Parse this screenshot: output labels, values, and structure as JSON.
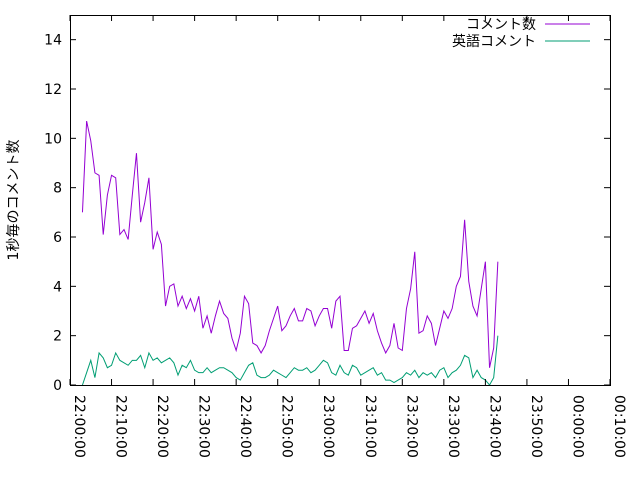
{
  "chart_data": {
    "type": "line",
    "title": "",
    "xlabel": "",
    "ylabel": "1秒毎のコメント数",
    "xlim": [
      "22:00:00",
      "00:10:00"
    ],
    "ylim": [
      0,
      15
    ],
    "x_ticks": [
      "22:00:00",
      "22:10:00",
      "22:20:00",
      "22:30:00",
      "22:40:00",
      "22:50:00",
      "23:00:00",
      "23:10:00",
      "23:20:00",
      "23:30:00",
      "23:40:00",
      "23:50:00",
      "00:00:00",
      "00:10:00"
    ],
    "y_ticks": [
      "0",
      "2",
      "4",
      "6",
      "8",
      "10",
      "12",
      "14"
    ],
    "legend_position": "top-right",
    "grid": false,
    "x_interval_seconds": 60,
    "x_start": "22:03:00",
    "series": [
      {
        "name": "コメント数",
        "color": "#9400d3",
        "values": [
          7.0,
          10.7,
          9.9,
          8.6,
          8.5,
          6.1,
          7.7,
          8.5,
          8.4,
          6.1,
          6.3,
          5.9,
          7.7,
          9.4,
          6.6,
          7.4,
          8.4,
          5.5,
          6.2,
          5.7,
          3.2,
          4.0,
          4.1,
          3.2,
          3.6,
          3.1,
          3.5,
          3.0,
          3.6,
          2.3,
          2.8,
          2.1,
          2.8,
          3.4,
          2.9,
          2.7,
          1.9,
          1.4,
          2.1,
          3.6,
          3.3,
          1.7,
          1.6,
          1.3,
          1.6,
          2.2,
          2.7,
          3.2,
          2.2,
          2.4,
          2.8,
          3.1,
          2.6,
          2.6,
          3.1,
          3.0,
          2.4,
          2.8,
          3.1,
          3.1,
          2.3,
          3.4,
          3.6,
          1.4,
          1.4,
          2.3,
          2.4,
          2.7,
          3.0,
          2.5,
          2.9,
          2.2,
          1.7,
          1.3,
          1.6,
          2.5,
          1.5,
          1.4,
          3.1,
          3.9,
          5.4,
          2.1,
          2.2,
          2.8,
          2.5,
          1.6,
          2.3,
          3.0,
          2.7,
          3.1,
          4.0,
          4.4,
          6.7,
          4.2,
          3.2,
          2.8,
          3.9,
          5.0,
          0.7,
          1.5,
          5.0
        ]
      },
      {
        "name": "英語コメント",
        "color": "#009e73",
        "values": [
          0.0,
          0.5,
          1.0,
          0.3,
          1.3,
          1.1,
          0.7,
          0.8,
          1.3,
          1.0,
          0.9,
          0.8,
          1.0,
          1.0,
          1.2,
          0.7,
          1.3,
          1.0,
          1.1,
          0.9,
          1.0,
          1.1,
          0.9,
          0.4,
          0.8,
          0.7,
          1.0,
          0.6,
          0.5,
          0.5,
          0.7,
          0.5,
          0.6,
          0.7,
          0.7,
          0.6,
          0.5,
          0.3,
          0.2,
          0.5,
          0.8,
          0.9,
          0.4,
          0.3,
          0.3,
          0.4,
          0.6,
          0.5,
          0.4,
          0.3,
          0.5,
          0.7,
          0.6,
          0.6,
          0.7,
          0.5,
          0.6,
          0.8,
          1.0,
          0.9,
          0.5,
          0.4,
          0.8,
          0.5,
          0.4,
          0.8,
          0.7,
          0.4,
          0.5,
          0.6,
          0.7,
          0.4,
          0.5,
          0.2,
          0.2,
          0.1,
          0.2,
          0.3,
          0.5,
          0.4,
          0.6,
          0.3,
          0.5,
          0.4,
          0.5,
          0.3,
          0.6,
          0.7,
          0.3,
          0.5,
          0.6,
          0.8,
          1.2,
          1.1,
          0.3,
          0.6,
          0.3,
          0.2,
          0.0,
          0.3,
          2.0
        ]
      }
    ]
  }
}
